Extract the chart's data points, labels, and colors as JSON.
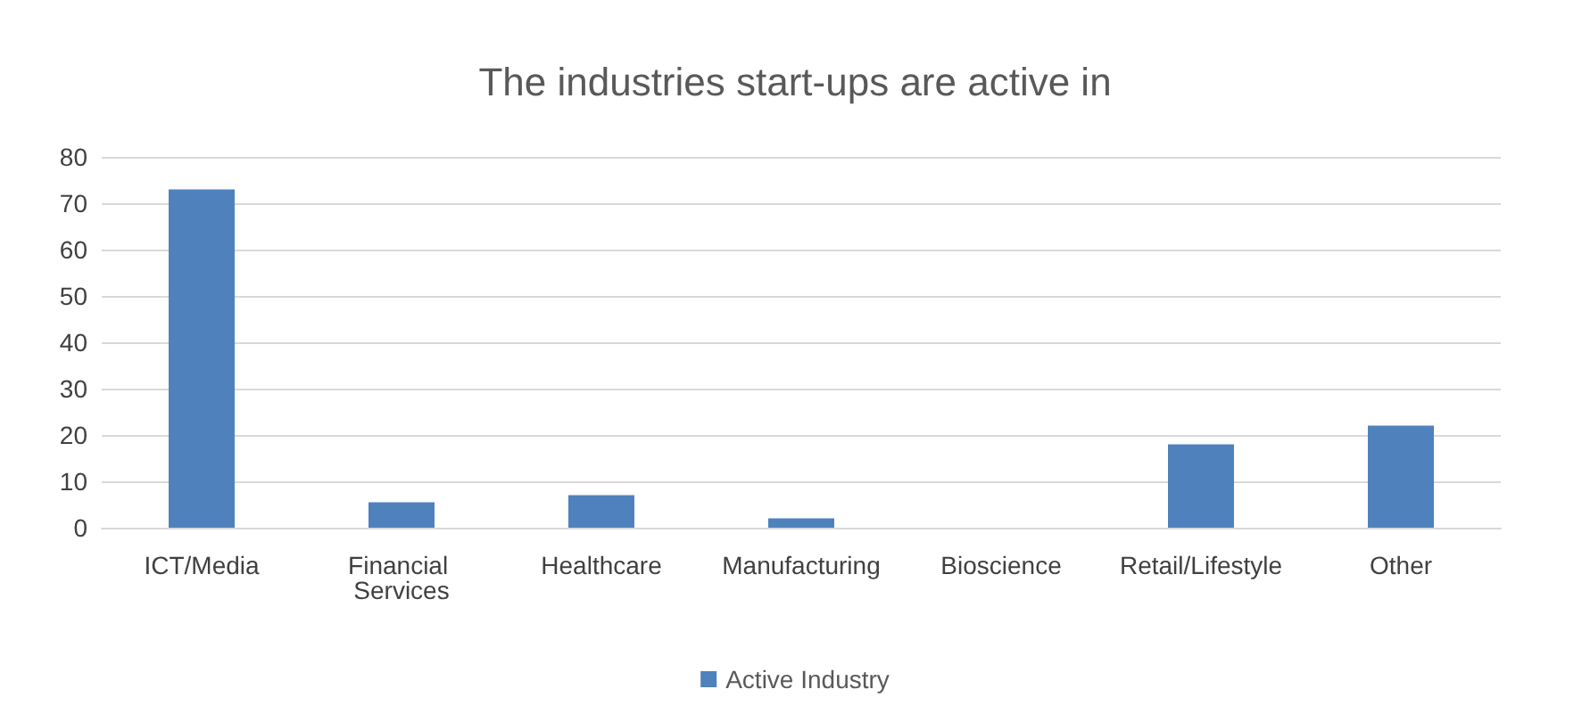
{
  "chart_data": {
    "type": "bar",
    "title": "The industries start-ups are active in",
    "categories": [
      "ICT/Media",
      "Financial Services",
      "Healthcare",
      "Manufacturing",
      "Bioscience",
      "Retail/Lifestyle",
      "Other"
    ],
    "series": [
      {
        "name": "Active Industry",
        "color": "#4f81bd",
        "values": [
          73,
          5.5,
          7,
          2,
          0,
          18,
          22
        ]
      }
    ],
    "ylim": [
      0,
      80
    ],
    "yticks": [
      0,
      10,
      20,
      30,
      40,
      50,
      60,
      70,
      80
    ],
    "grid": "y",
    "legend": "bottom"
  }
}
